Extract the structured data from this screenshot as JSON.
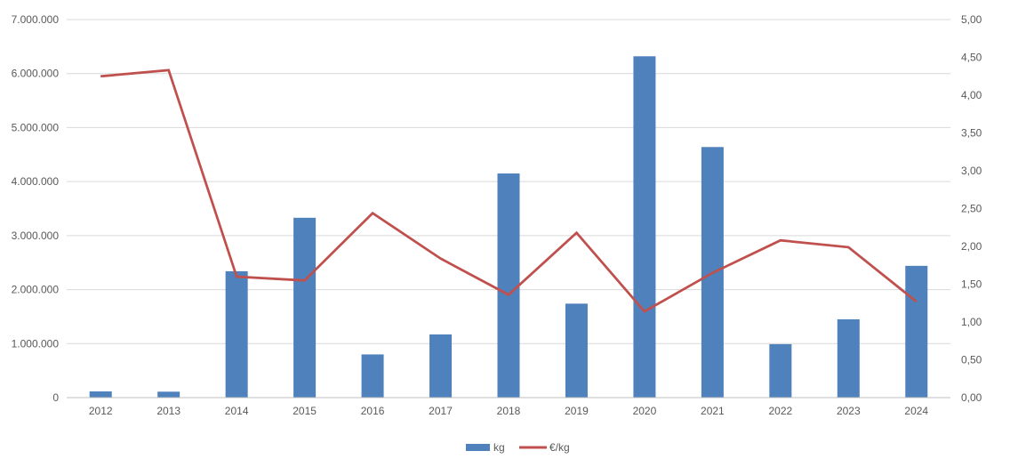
{
  "chart": {
    "background": "#FFFFFF",
    "text_color": "#595959",
    "gridline_color": "#D9D9D9",
    "axisline_color": "#BFBFBF",
    "bar_color": "#4F81BD",
    "line_color": "#C0504D"
  },
  "chart_data": {
    "type": "combo",
    "title": "",
    "xlabel": "",
    "ylabel_left": "",
    "ylabel_right": "",
    "grid": true,
    "legend_position": "bottom",
    "categories": [
      "2012",
      "2013",
      "2014",
      "2015",
      "2016",
      "2017",
      "2018",
      "2019",
      "2020",
      "2021",
      "2022",
      "2023",
      "2024"
    ],
    "series": [
      {
        "name": "kg",
        "type": "bar",
        "axis": "left",
        "color": "#4F81BD",
        "values": [
          115000,
          110000,
          2340000,
          3330000,
          800000,
          1170000,
          4150000,
          1740000,
          6320000,
          4640000,
          990000,
          1450000,
          2440000
        ]
      },
      {
        "name": "€/kg",
        "type": "line",
        "axis": "right",
        "color": "#C0504D",
        "values": [
          4.25,
          4.33,
          1.6,
          1.55,
          2.44,
          1.84,
          1.36,
          2.18,
          1.14,
          1.65,
          2.08,
          1.99,
          1.27
        ]
      }
    ],
    "left_axis": {
      "min": 0,
      "max": 7000000,
      "step": 1000000,
      "tick_labels": [
        "0",
        "1.000.000",
        "2.000.000",
        "3.000.000",
        "4.000.000",
        "5.000.000",
        "6.000.000",
        "7.000.000"
      ]
    },
    "right_axis": {
      "min": 0,
      "max": 5,
      "step": 0.5,
      "tick_labels": [
        "0,00",
        "0,50",
        "1,00",
        "1,50",
        "2,00",
        "2,50",
        "3,00",
        "3,50",
        "4,00",
        "4,50",
        "5,00"
      ]
    }
  },
  "legend": {
    "items": [
      {
        "label": "kg",
        "swatch": "rect",
        "color": "#4F81BD"
      },
      {
        "label": "€/kg",
        "swatch": "line",
        "color": "#C0504D"
      }
    ]
  }
}
